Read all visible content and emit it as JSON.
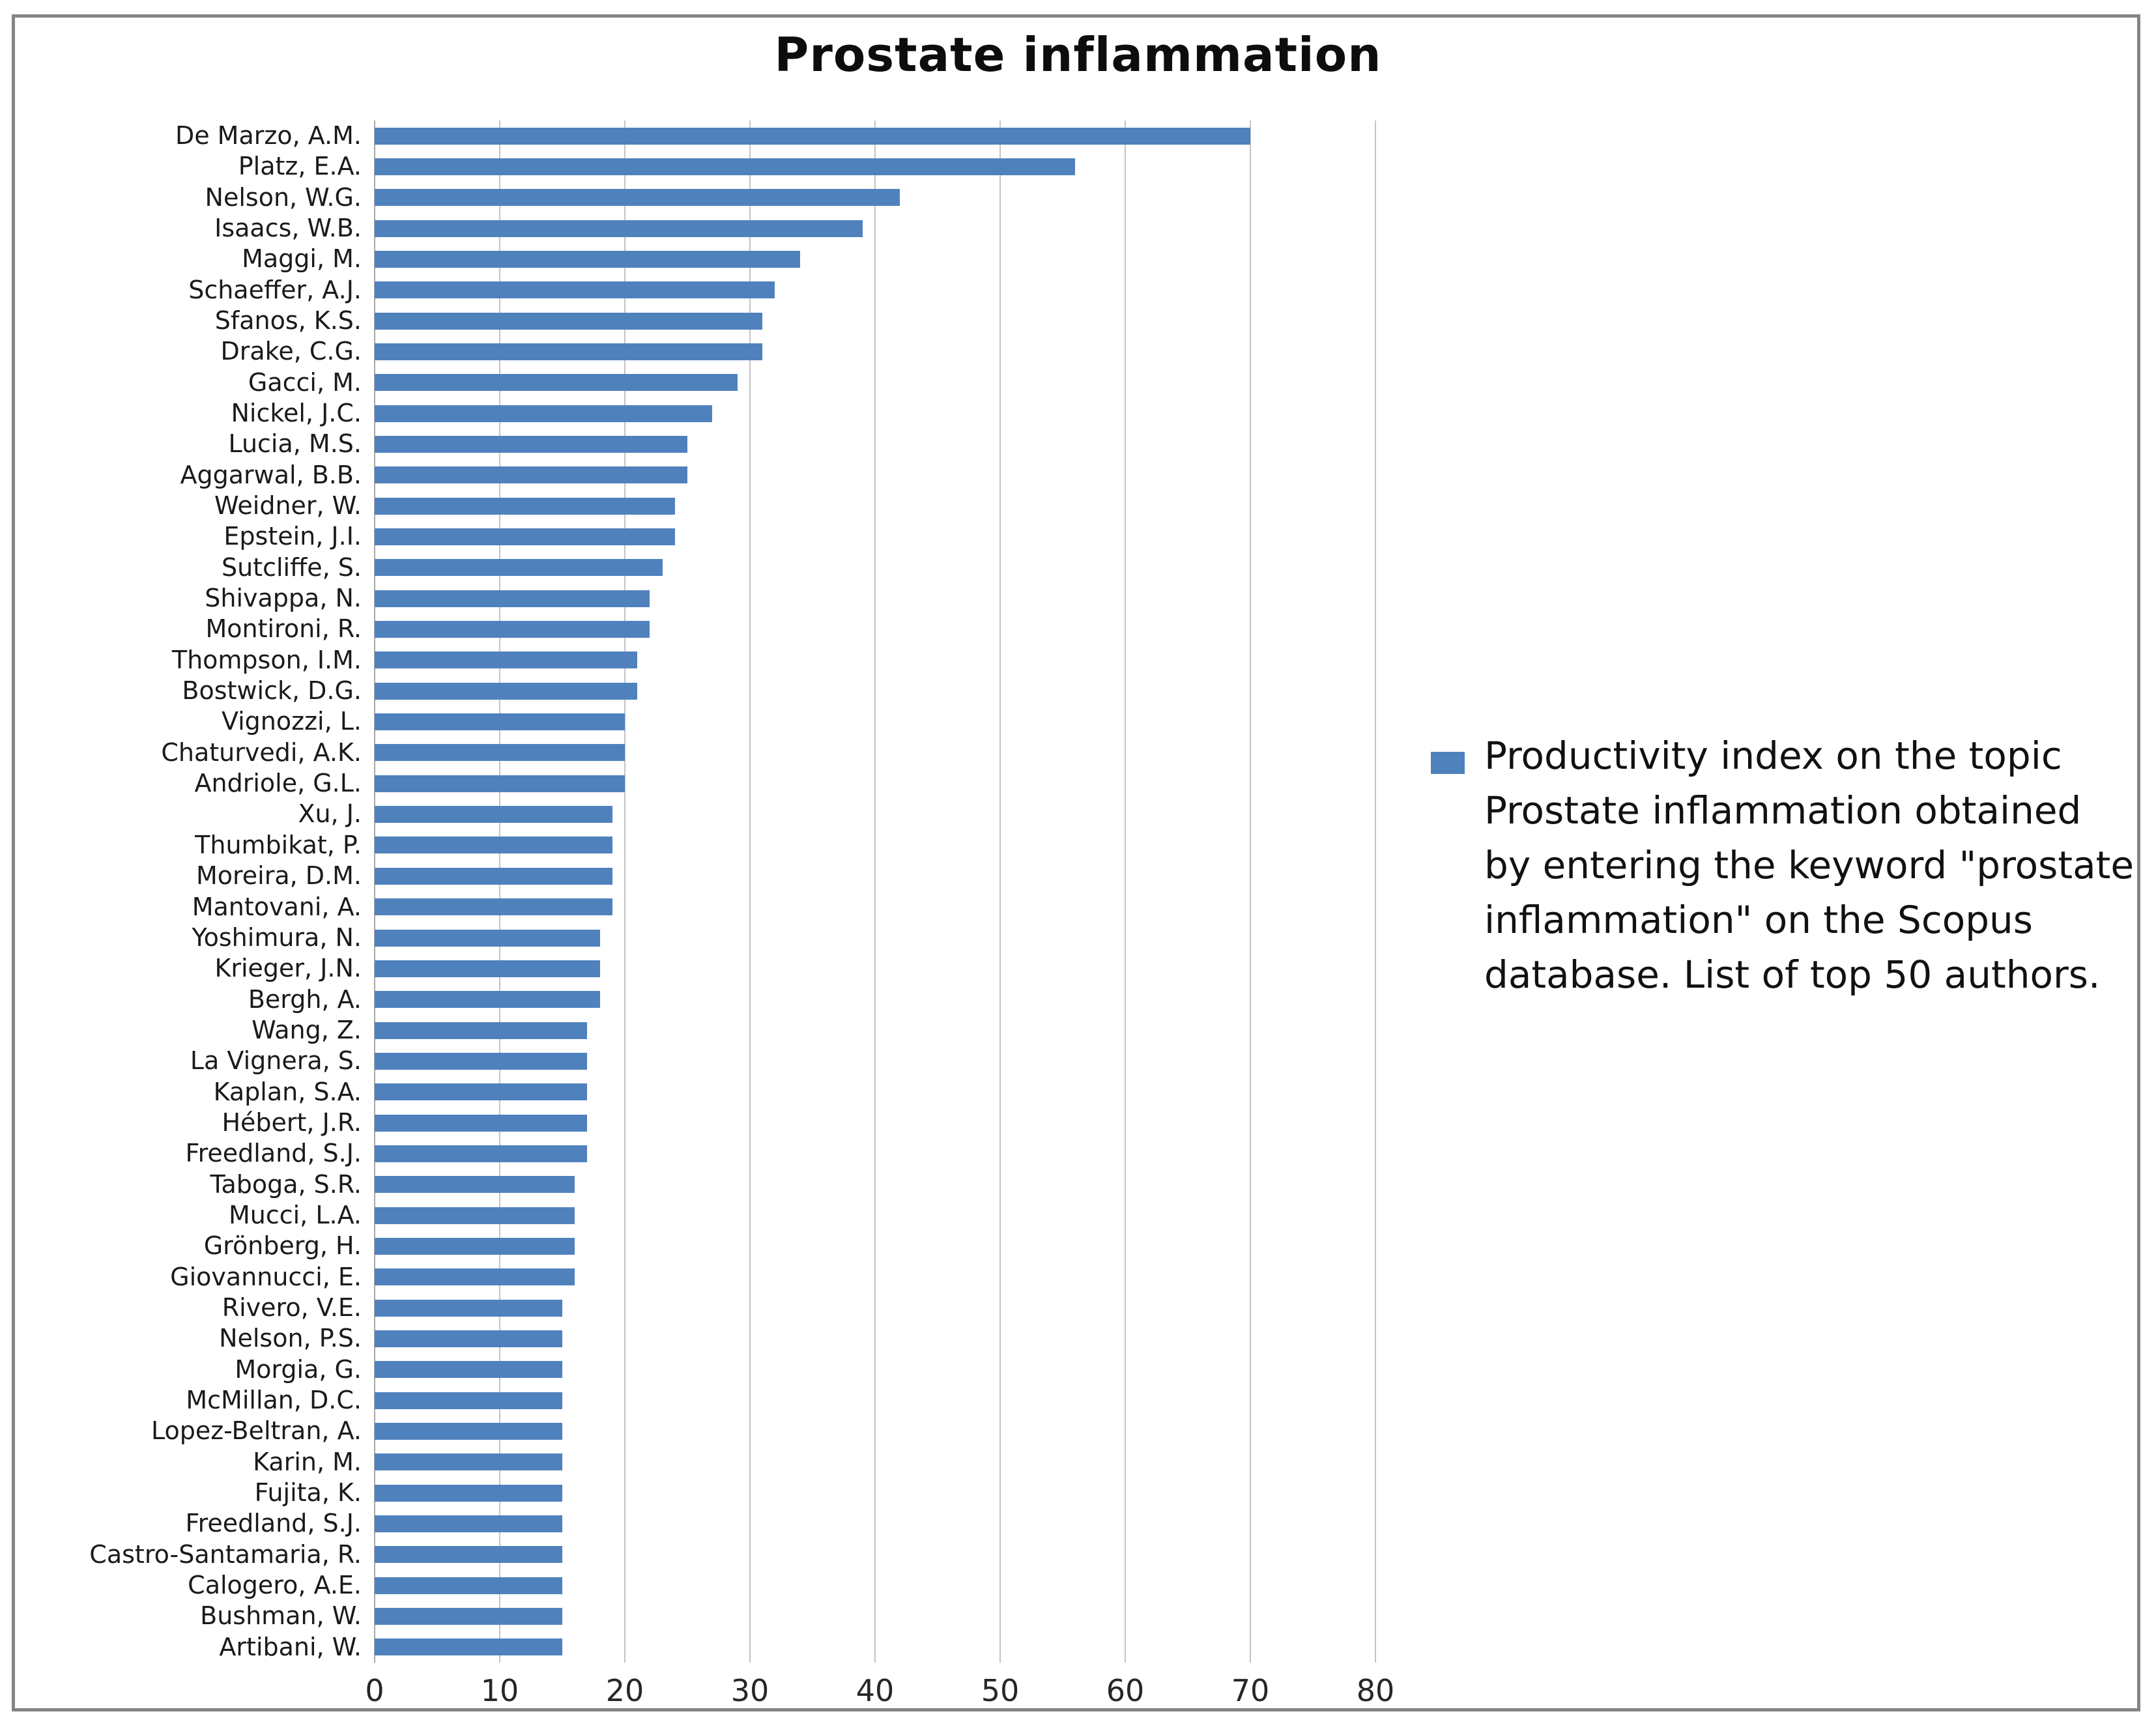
{
  "title": "Prostate inflammation",
  "legend": {
    "marker": "blue-square-icon",
    "text": "Productivity index on the topic Prostate inflammation obtained by entering the keyword \"prostate inflammation\" on the Scopus database. List of top 50 authors."
  },
  "colors": {
    "bar": "#4F81BD",
    "gridline": "#c4c4c4",
    "zero_axis_line": "#a8a8a8",
    "frame_border": "#848484",
    "title_text": "#0d0d0d",
    "label_text": "#1a1a1a",
    "tick_text": "#262626"
  },
  "chart_data": {
    "type": "bar",
    "orientation": "horizontal",
    "title": "Prostate inflammation",
    "xlabel": "",
    "ylabel": "",
    "xlim": [
      0,
      80
    ],
    "x_ticks": [
      0,
      10,
      20,
      30,
      40,
      50,
      60,
      70,
      80
    ],
    "grid": true,
    "legend_position": "right",
    "series_name": "Productivity index on the topic Prostate inflammation obtained by entering the keyword \"prostate inflammation\" on the Scopus database. List of top 50 authors.",
    "categories": [
      "De Marzo, A.M.",
      "Platz, E.A.",
      "Nelson, W.G.",
      "Isaacs, W.B.",
      "Maggi, M.",
      "Schaeffer, A.J.",
      "Sfanos, K.S.",
      "Drake, C.G.",
      "Gacci, M.",
      "Nickel, J.C.",
      "Lucia, M.S.",
      "Aggarwal, B.B.",
      "Weidner, W.",
      "Epstein, J.I.",
      "Sutcliffe, S.",
      "Shivappa, N.",
      "Montironi, R.",
      "Thompson, I.M.",
      "Bostwick, D.G.",
      "Vignozzi, L.",
      "Chaturvedi, A.K.",
      "Andriole, G.L.",
      "Xu, J.",
      "Thumbikat, P.",
      "Moreira, D.M.",
      "Mantovani, A.",
      "Yoshimura, N.",
      "Krieger, J.N.",
      "Bergh, A.",
      "Wang, Z.",
      "La Vignera, S.",
      "Kaplan, S.A.",
      "Hébert, J.R.",
      "Freedland, S.J.",
      "Taboga, S.R.",
      "Mucci, L.A.",
      "Grönberg, H.",
      "Giovannucci, E.",
      "Rivero, V.E.",
      "Nelson, P.S.",
      "Morgia, G.",
      "McMillan, D.C.",
      "Lopez-Beltran, A.",
      "Karin, M.",
      "Fujita, K.",
      "Freedland, S.J.",
      "Castro-Santamaria, R.",
      "Calogero, A.E.",
      "Bushman, W.",
      "Artibani, W."
    ],
    "values": [
      70,
      56,
      42,
      39,
      34,
      32,
      31,
      31,
      29,
      27,
      25,
      25,
      24,
      24,
      23,
      22,
      22,
      21,
      21,
      20,
      20,
      20,
      19,
      19,
      19,
      19,
      18,
      18,
      18,
      17,
      17,
      17,
      17,
      17,
      16,
      16,
      16,
      16,
      15,
      15,
      15,
      15,
      15,
      15,
      15,
      15,
      15,
      15,
      15,
      15
    ]
  }
}
